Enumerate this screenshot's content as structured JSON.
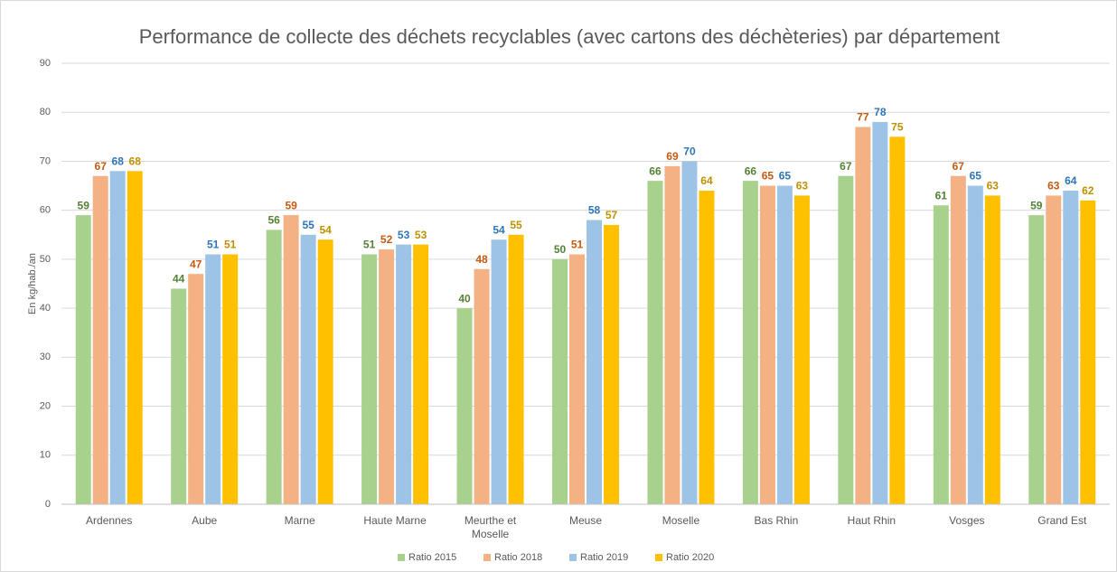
{
  "chart_data": {
    "type": "bar",
    "title": "Performance de collecte des déchets recyclables (avec cartons des déchèteries) par département",
    "y_label": "En kg/hab./an",
    "categories": [
      "Ardennes",
      "Aube",
      "Marne",
      "Haute Marne",
      "Meurthe et Moselle",
      "Meuse",
      "Moselle",
      "Bas Rhin",
      "Haut Rhin",
      "Vosges",
      "Grand Est"
    ],
    "series": [
      {
        "name": "Ratio 2015",
        "color": "#a9d18e",
        "label_color": "#548235",
        "values": [
          59,
          44,
          56,
          51,
          40,
          50,
          66,
          66,
          67,
          61,
          59
        ]
      },
      {
        "name": "Ratio 2018",
        "color": "#f4b183",
        "label_color": "#c55a11",
        "values": [
          67,
          47,
          59,
          52,
          48,
          51,
          69,
          65,
          77,
          67,
          63
        ]
      },
      {
        "name": "Ratio 2019",
        "color": "#9dc3e6",
        "label_color": "#2e75b6",
        "values": [
          68,
          51,
          55,
          53,
          54,
          58,
          70,
          65,
          78,
          65,
          64
        ]
      },
      {
        "name": "Ratio 2020",
        "color": "#ffc000",
        "label_color": "#bf9000",
        "values": [
          68,
          51,
          54,
          53,
          55,
          57,
          64,
          63,
          75,
          63,
          62
        ]
      }
    ],
    "ylim": [
      0,
      90
    ],
    "yticks": [
      0,
      10,
      20,
      30,
      40,
      50,
      60,
      70,
      80,
      90
    ],
    "grid": true,
    "legend": "bottom"
  }
}
